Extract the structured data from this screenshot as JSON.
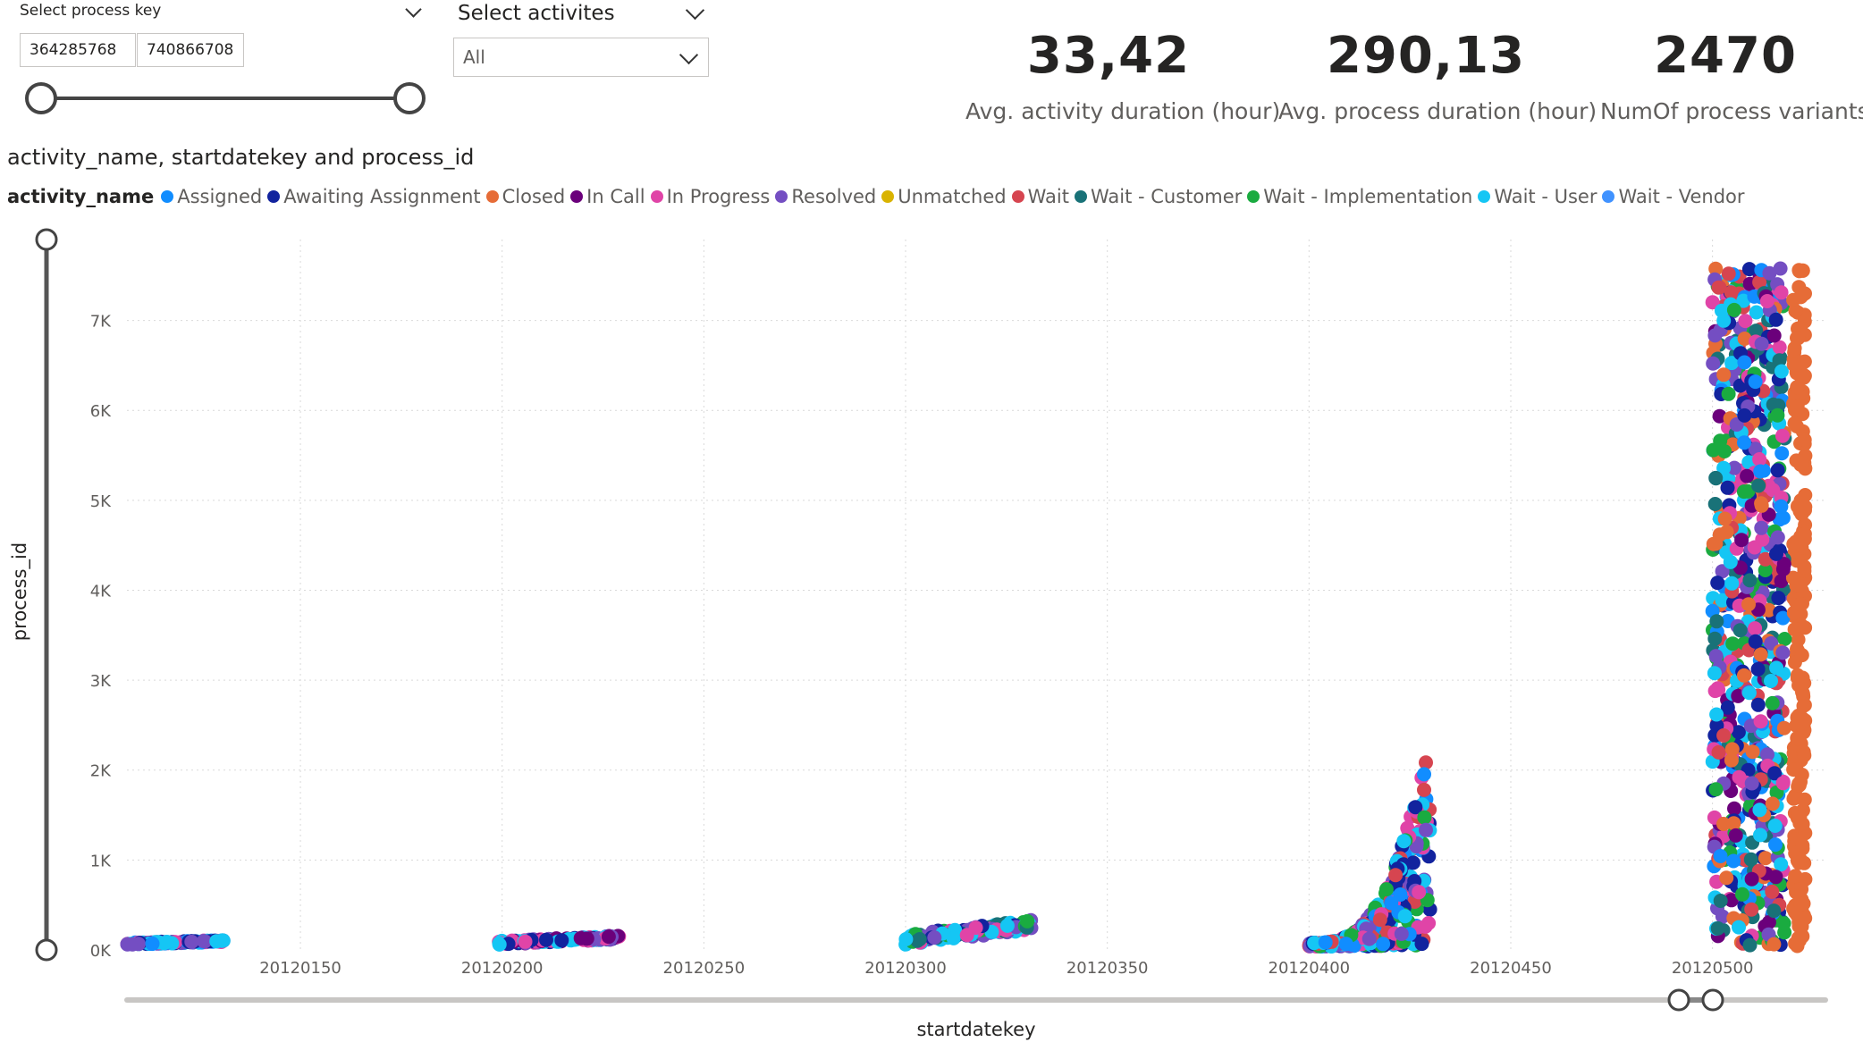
{
  "process_key_slicer": {
    "title": "Select process key",
    "min_value": "364285768",
    "max_value": "740866708"
  },
  "activity_slicer": {
    "title": "Select activites",
    "selected": "All"
  },
  "kpis": [
    {
      "value": "33,42",
      "label": "Avg. activity duration (hour)"
    },
    {
      "value": "290,13",
      "label": "Avg. process duration (hour)"
    },
    {
      "value": "2470",
      "label": "NumOf process variants"
    }
  ],
  "chart_data": {
    "type": "scatter",
    "title": "activity_name, startdatekey and process_id",
    "legend_title": "activity_name",
    "legend_position": "top-left",
    "xlabel": "startdatekey",
    "ylabel": "process_id",
    "xlim": [
      20120107,
      20120528
    ],
    "ylim": [
      0,
      7900
    ],
    "grid": true,
    "x_ticks": [
      "20120150",
      "20120200",
      "20120250",
      "20120300",
      "20120350",
      "20120400",
      "20120450",
      "20120500"
    ],
    "y_ticks": [
      "0K",
      "1K",
      "2K",
      "3K",
      "4K",
      "5K",
      "6K",
      "7K"
    ],
    "y_tick_values": [
      0,
      1000,
      2000,
      3000,
      4000,
      5000,
      6000,
      7000
    ],
    "x_tick_values": [
      20120150,
      20120200,
      20120250,
      20120300,
      20120350,
      20120400,
      20120450,
      20120500
    ],
    "series": [
      {
        "name": "Assigned",
        "color": "#118DFF"
      },
      {
        "name": "Awaiting Assignment",
        "color": "#12239E"
      },
      {
        "name": "Closed",
        "color": "#E66C37"
      },
      {
        "name": "In Call",
        "color": "#6B007B"
      },
      {
        "name": "In Progress",
        "color": "#E044A7"
      },
      {
        "name": "Resolved",
        "color": "#744EC2"
      },
      {
        "name": "Unmatched",
        "color": "#D9B300"
      },
      {
        "name": "Wait",
        "color": "#D64550"
      },
      {
        "name": "Wait - Customer",
        "color": "#197278"
      },
      {
        "name": "Wait - Implementation",
        "color": "#1AAB40"
      },
      {
        "name": "Wait - User",
        "color": "#15C6F4"
      },
      {
        "name": "Wait - Vendor",
        "color": "#4092FF"
      }
    ],
    "clusters": [
      {
        "x_start": 20120107,
        "x_end": 20120131,
        "y_start": 60,
        "y_end": 110,
        "series": [
          "Assigned",
          "Awaiting Assignment",
          "In Progress",
          "Wait - User",
          "Resolved"
        ]
      },
      {
        "x_start": 20120199,
        "x_end": 20120229,
        "y_start": 60,
        "y_end": 160,
        "series": [
          "Awaiting Assignment",
          "In Progress",
          "Wait - User",
          "Resolved",
          "In Call"
        ]
      },
      {
        "x_start": 20120300,
        "x_end": 20120332,
        "y_start": 60,
        "y_end": 340,
        "series": [
          "Wait - User",
          "In Progress",
          "Wait - Implementation",
          "Resolved",
          "Awaiting Assignment",
          "Wait - Customer"
        ]
      },
      {
        "x_start": 20120400,
        "x_end": 20120430,
        "y_start": 40,
        "y_end": 2450,
        "series": [
          "Wait - User",
          "In Progress",
          "Resolved",
          "Wait",
          "Wait - Implementation",
          "Awaiting Assignment",
          "Assigned"
        ]
      },
      {
        "x_start": 20120500,
        "x_end": 20120523,
        "y_start": 30,
        "y_end": 7580,
        "series": [
          "Resolved",
          "Wait - User",
          "Closed",
          "In Progress",
          "Wait - Implementation",
          "Wait",
          "Awaiting Assignment",
          "In Call",
          "Assigned",
          "Wait - Customer"
        ]
      }
    ]
  }
}
